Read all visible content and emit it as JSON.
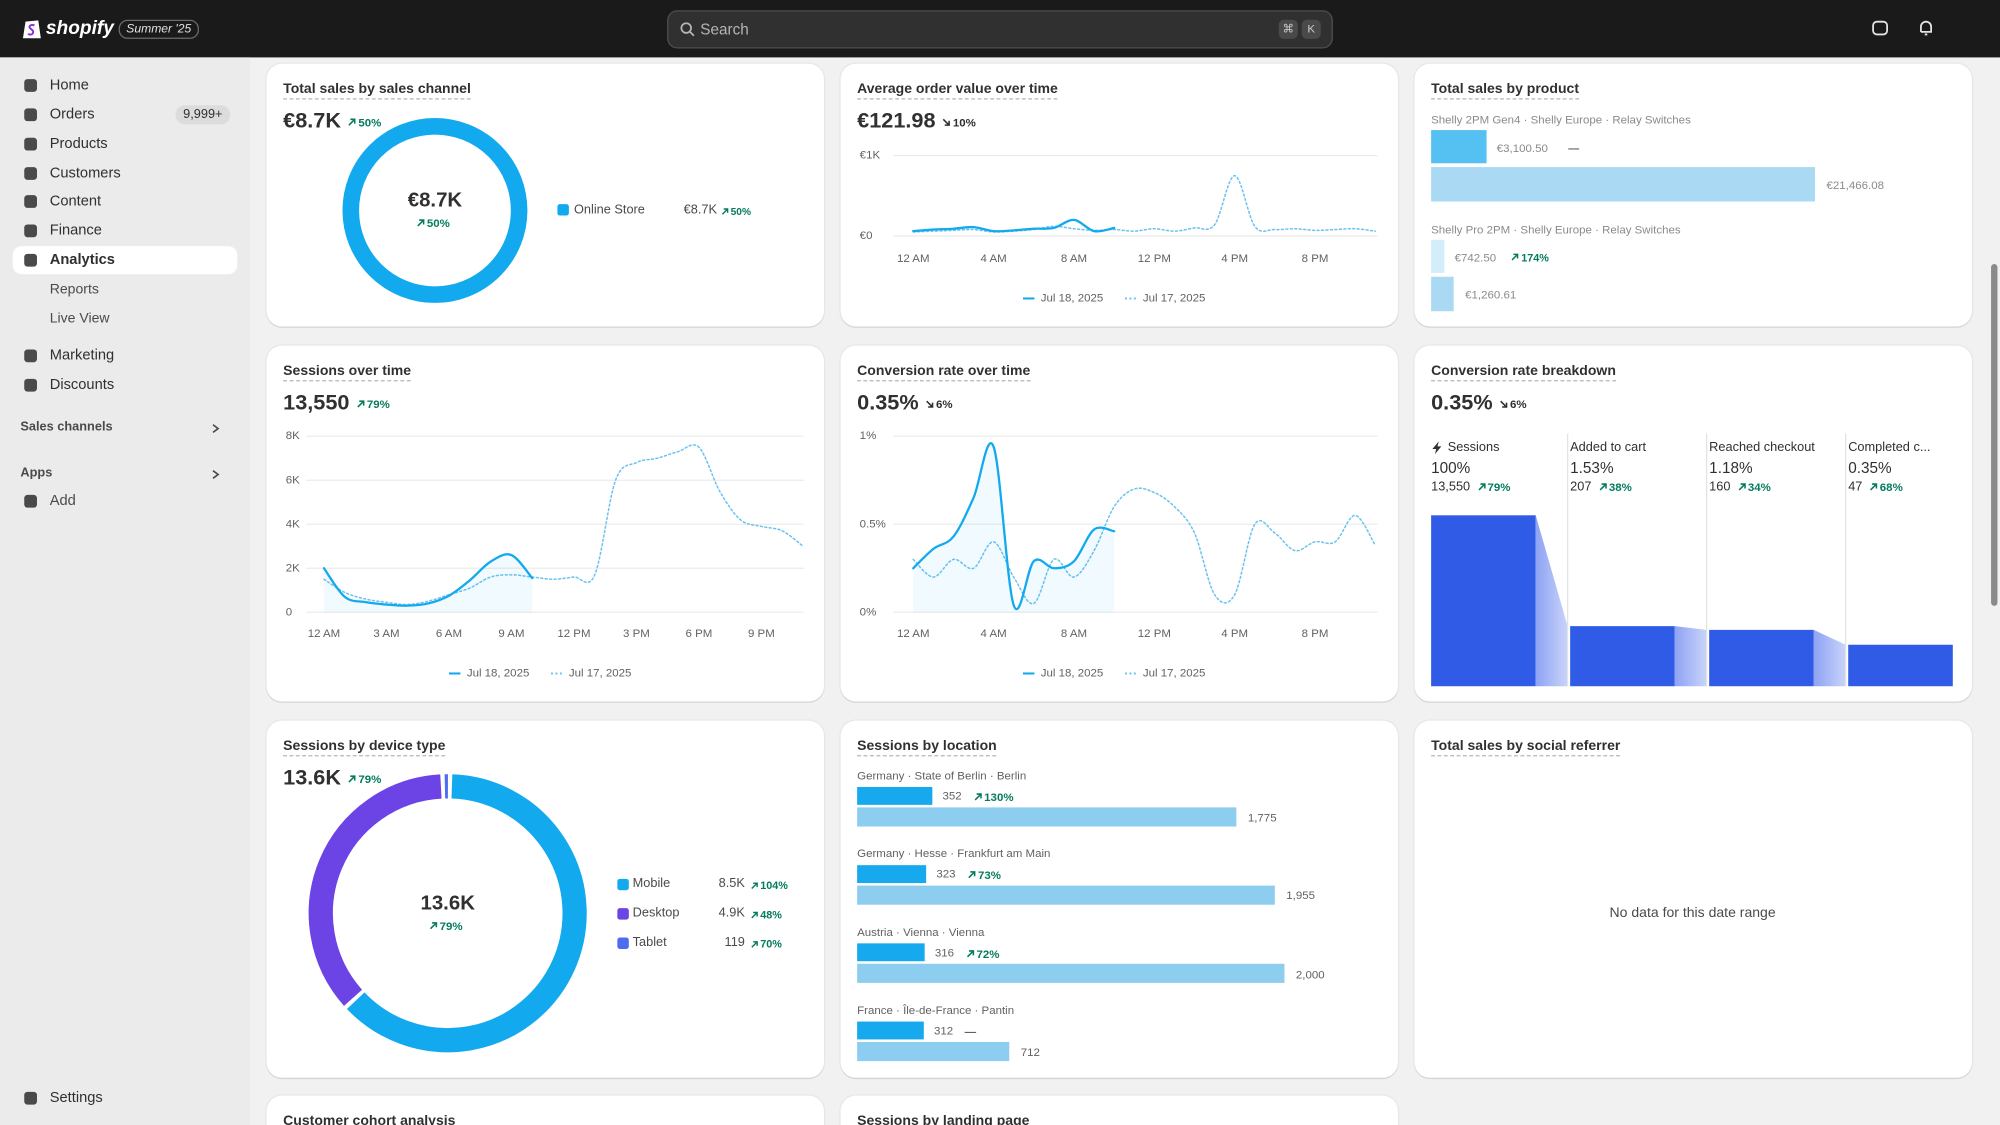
{
  "topbar": {
    "brand": "shopify",
    "badge": "Summer '25",
    "search": "Search",
    "shortcut": [
      "⌘",
      "K"
    ]
  },
  "nav": {
    "main": [
      {
        "label": "Home"
      },
      {
        "label": "Orders",
        "badge": "9,999+"
      },
      {
        "label": "Products"
      },
      {
        "label": "Customers"
      },
      {
        "label": "Content"
      },
      {
        "label": "Finance"
      },
      {
        "label": "Analytics",
        "selected": true
      }
    ],
    "analytics_sub": [
      "Reports",
      "Live View"
    ],
    "more": [
      {
        "label": "Marketing"
      },
      {
        "label": "Discounts"
      }
    ],
    "sections": [
      "Sales channels",
      "Apps"
    ],
    "add": "Add",
    "settings": "Settings"
  },
  "cards": [
    {
      "title": "Total sales by sales channel",
      "total": "€8.7K",
      "change": "50%",
      "trend": "up",
      "color": "#13a9ef",
      "legend": [
        {
          "name": "Online Store",
          "value": "€8.7K",
          "change": "50%",
          "trend": "up"
        }
      ]
    },
    {
      "title": "Average order value over time",
      "total": "€121.98",
      "change": "10%",
      "trend": "down",
      "chart": {
        "type": "line",
        "xlim": [
          0,
          23
        ],
        "xticks": [
          {
            "value": 0,
            "label": "12 AM"
          },
          {
            "value": 4,
            "label": "4 AM"
          },
          {
            "value": 8,
            "label": "8 AM"
          },
          {
            "value": 12,
            "label": "12 PM"
          },
          {
            "value": 16,
            "label": "4 PM"
          },
          {
            "value": 20,
            "label": "8 PM"
          }
        ],
        "ylim": [
          0,
          1000
        ],
        "yticks": [
          {
            "value": 0,
            "label": "€0"
          },
          {
            "value": 1000,
            "label": "€1K"
          }
        ],
        "series": [
          {
            "name": "Jul 18, 2025",
            "color": "#13a9ef",
            "style": "solid",
            "values": [
              60,
              80,
              90,
              110,
              60,
              70,
              90,
              100,
              200,
              60,
              100,
              null,
              null,
              null,
              null,
              null,
              null,
              null,
              null,
              null,
              null,
              null,
              null,
              null
            ]
          },
          {
            "name": "Jul 17, 2025",
            "color": "#6cc3ef",
            "style": "dotted",
            "values": [
              50,
              60,
              70,
              80,
              50,
              60,
              80,
              120,
              90,
              70,
              80,
              60,
              90,
              60,
              100,
              140,
              750,
              120,
              80,
              90,
              70,
              80,
              90,
              60
            ]
          }
        ]
      }
    },
    {
      "title": "Total sales by product",
      "products": [
        {
          "name": "Shelly 2PM Gen4 · Shelly Europe · Relay Switches",
          "current": 3100.5,
          "current_label": "€3,100.50",
          "change": "—",
          "previous": 21466.08,
          "previous_label": "€21,466.08"
        },
        {
          "name": "Shelly Pro 2PM · Shelly Europe · Relay Switches",
          "current": 742.5,
          "current_label": "€742.50",
          "change": "174%",
          "trend": "up",
          "previous": 1260.61,
          "previous_label": "€1,260.61"
        }
      ]
    },
    {
      "title": "Sessions over time",
      "total": "13,550",
      "change": "79%",
      "trend": "up",
      "chart": {
        "type": "line",
        "xlim": [
          0,
          23
        ],
        "xticks": [
          {
            "value": 0,
            "label": "12 AM"
          },
          {
            "value": 3,
            "label": "3 AM"
          },
          {
            "value": 6,
            "label": "6 AM"
          },
          {
            "value": 9,
            "label": "9 AM"
          },
          {
            "value": 12,
            "label": "12 PM"
          },
          {
            "value": 15,
            "label": "3 PM"
          },
          {
            "value": 18,
            "label": "6 PM"
          },
          {
            "value": 21,
            "label": "9 PM"
          }
        ],
        "ylim": [
          0,
          8000
        ],
        "yticks": [
          0,
          {
            "value": 2000,
            "label": "2K"
          },
          {
            "value": 4000,
            "label": "4K"
          },
          {
            "value": 6000,
            "label": "6K"
          },
          {
            "value": 8000,
            "label": "8K"
          }
        ],
        "series": [
          {
            "name": "Jul 18, 2025",
            "color": "#13a9ef",
            "style": "solid",
            "values": [
              2000,
              700,
              460,
              350,
              300,
              400,
              750,
              1450,
              2300,
              2600,
              1550,
              null,
              null,
              null,
              null,
              null,
              null,
              null,
              null,
              null,
              null,
              null,
              null,
              null
            ]
          },
          {
            "name": "Jul 17, 2025",
            "color": "#6cc3ef",
            "style": "dotted",
            "values": [
              1500,
              900,
              600,
              450,
              350,
              500,
              800,
              1100,
              1600,
              1700,
              1600,
              1500,
              1600,
              1700,
              6000,
              6800,
              7000,
              7300,
              7500,
              5500,
              4200,
              3900,
              3700,
              3000
            ]
          }
        ]
      }
    },
    {
      "title": "Conversion rate over time",
      "total": "0.35%",
      "change": "6%",
      "trend": "down",
      "chart": {
        "type": "line",
        "xlim": [
          0,
          23
        ],
        "xticks": [
          {
            "value": 0,
            "label": "12 AM"
          },
          {
            "value": 4,
            "label": "4 AM"
          },
          {
            "value": 8,
            "label": "8 AM"
          },
          {
            "value": 12,
            "label": "12 PM"
          },
          {
            "value": 16,
            "label": "4 PM"
          },
          {
            "value": 20,
            "label": "8 PM"
          }
        ],
        "ylim": [
          0,
          1
        ],
        "yticks": [
          {
            "value": 0,
            "label": "0%"
          },
          {
            "value": 0.5,
            "label": "0.5%"
          },
          {
            "value": 1,
            "label": "1%"
          }
        ],
        "series": [
          {
            "name": "Jul 18, 2025",
            "color": "#13a9ef",
            "style": "solid",
            "values": [
              0.25,
              0.36,
              0.43,
              0.65,
              0.94,
              0.04,
              0.29,
              0.25,
              0.29,
              0.47,
              0.46,
              null,
              null,
              null,
              null,
              null,
              null,
              null,
              null,
              null,
              null,
              null,
              null,
              null
            ]
          },
          {
            "name": "Jul 17, 2025",
            "color": "#6cc3ef",
            "style": "dotted",
            "values": [
              0.3,
              0.2,
              0.3,
              0.25,
              0.4,
              0.2,
              0.05,
              0.3,
              0.2,
              0.35,
              0.6,
              0.7,
              0.68,
              0.6,
              0.45,
              0.1,
              0.1,
              0.5,
              0.45,
              0.35,
              0.4,
              0.4,
              0.55,
              0.38
            ]
          }
        ]
      }
    },
    {
      "title": "Conversion rate breakdown",
      "total": "0.35%",
      "change": "6%",
      "trend": "down",
      "color": "#2f5be7",
      "stages": [
        {
          "name": "Sessions",
          "rate": "100%",
          "count": 13550,
          "count_label": "13,550",
          "change": "79%",
          "trend": "up"
        },
        {
          "name": "Added to cart",
          "rate": "1.53%",
          "count": 207,
          "change": "38%",
          "trend": "up"
        },
        {
          "name": "Reached checkout",
          "rate": "1.18%",
          "count": 160,
          "change": "34%",
          "trend": "up"
        },
        {
          "name": "Completed c...",
          "rate": "0.35%",
          "count": 47,
          "change": "68%",
          "trend": "up"
        }
      ]
    },
    {
      "title": "Sessions by device type",
      "total": "13.6K",
      "change": "79%",
      "trend": "up",
      "chart": {
        "type": "pie",
        "categories": [
          "Mobile",
          "Desktop",
          "Tablet"
        ],
        "values": [
          8500,
          4900,
          119
        ],
        "value_labels": [
          "8.5K",
          "4.9K",
          "119"
        ],
        "colors": [
          "#13a9ef",
          "#6c43e4",
          "#4e6cf0"
        ],
        "changes": [
          "104%",
          "48%",
          "70%"
        ]
      }
    },
    {
      "title": "Sessions by location",
      "locations": [
        {
          "name": "Germany · State of Berlin · Berlin",
          "current": 352,
          "change": "130%",
          "trend": "up",
          "previous": 1775,
          "previous_label": "1,775"
        },
        {
          "name": "Germany · Hesse · Frankfurt am Main",
          "current": 323,
          "change": "73%",
          "trend": "up",
          "previous": 1955,
          "previous_label": "1,955"
        },
        {
          "name": "Austria · Vienna · Vienna",
          "current": 316,
          "change": "72%",
          "trend": "up",
          "previous": 2000,
          "previous_label": "2,000"
        },
        {
          "name": "France · Île-de-France · Pantin",
          "current": 312,
          "change": "—",
          "previous": 712
        }
      ]
    },
    {
      "title": "Total sales by social referrer",
      "empty": "No data for this date range"
    },
    {
      "title": "Customer cohort analysis"
    },
    {
      "title": "Sessions by landing page"
    }
  ]
}
